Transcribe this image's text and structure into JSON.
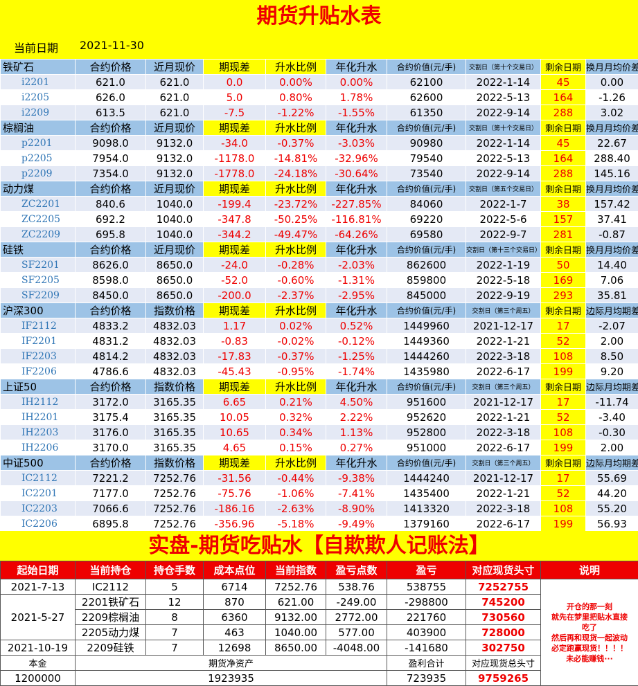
{
  "title": "期货升贴水表",
  "date_label": "当前日期",
  "date": "2021-11-30",
  "sections": [
    {
      "header": [
        "铁矿石",
        "合约价格",
        "近月现价",
        "期现差",
        "升水比例",
        "年化升水",
        "合约价值(元/手)",
        "交割日（第十个交易日）",
        "剩余日期",
        "换月月均价差"
      ],
      "rows": [
        [
          "i2201",
          "621.0",
          "621.0",
          "0.0",
          "0.00%",
          "0.00%",
          "62100",
          "2022-1-14",
          "45",
          "0.00"
        ],
        [
          "i2205",
          "626.0",
          "621.0",
          "5.0",
          "0.80%",
          "1.78%",
          "62600",
          "2022-5-13",
          "164",
          "-1.26"
        ],
        [
          "i2209",
          "613.5",
          "621.0",
          "-7.5",
          "-1.22%",
          "-1.55%",
          "61350",
          "2022-9-14",
          "288",
          "3.02"
        ]
      ]
    },
    {
      "header": [
        "棕榈油",
        "合约价格",
        "近月现价",
        "期现差",
        "升水比例",
        "年化升水",
        "合约价值(元/手)",
        "交割日（第十个交易日）",
        "剩余日期",
        "换月月均价差"
      ],
      "rows": [
        [
          "p2201",
          "9098.0",
          "9132.0",
          "-34.0",
          "-0.37%",
          "-3.03%",
          "90980",
          "2022-1-14",
          "45",
          "22.67"
        ],
        [
          "p2205",
          "7954.0",
          "9132.0",
          "-1178.0",
          "-14.81%",
          "-32.96%",
          "79540",
          "2022-5-13",
          "164",
          "288.40"
        ],
        [
          "p2209",
          "7354.0",
          "9132.0",
          "-1778.0",
          "-24.18%",
          "-30.64%",
          "73540",
          "2022-9-14",
          "288",
          "145.16"
        ]
      ]
    },
    {
      "header": [
        "动力煤",
        "合约价格",
        "近月现价",
        "期现差",
        "升水比例",
        "年化升水",
        "合约价值(元/手)",
        "交割日（第五个交易日）",
        "剩余日期",
        "换月月均价差"
      ],
      "rows": [
        [
          "ZC2201",
          "840.6",
          "1040.0",
          "-199.4",
          "-23.72%",
          "-227.85%",
          "84060",
          "2022-1-7",
          "38",
          "157.42"
        ],
        [
          "ZC2205",
          "692.2",
          "1040.0",
          "-347.8",
          "-50.25%",
          "-116.81%",
          "69220",
          "2022-5-6",
          "157",
          "37.41"
        ],
        [
          "ZC2209",
          "695.8",
          "1040.0",
          "-344.2",
          "-49.47%",
          "-64.26%",
          "69580",
          "2022-9-7",
          "281",
          "-0.87"
        ]
      ]
    },
    {
      "header": [
        "硅铁",
        "合约价格",
        "近月现价",
        "期现差",
        "升水比例",
        "年化升水",
        "合约价值(元/手)",
        "交割日（第十三个交易日）",
        "剩余日期",
        "换月月均价差"
      ],
      "rows": [
        [
          "SF2201",
          "8626.0",
          "8650.0",
          "-24.0",
          "-0.28%",
          "-2.03%",
          "862600",
          "2022-1-19",
          "50",
          "14.40"
        ],
        [
          "SF2205",
          "8598.0",
          "8650.0",
          "-52.0",
          "-0.60%",
          "-1.31%",
          "859800",
          "2022-5-18",
          "169",
          "7.06"
        ],
        [
          "SF2209",
          "8450.0",
          "8650.0",
          "-200.0",
          "-2.37%",
          "-2.95%",
          "845000",
          "2022-9-19",
          "293",
          "35.81"
        ]
      ]
    },
    {
      "header": [
        "沪深300",
        "合约价格",
        "指数价格",
        "期现差",
        "升水比例",
        "年化升水",
        "合约价值(元/手)",
        "交割日（第三个周五）",
        "剩余日期",
        "边际月均期差"
      ],
      "rows": [
        [
          "IF2112",
          "4833.2",
          "4832.03",
          "1.17",
          "0.02%",
          "0.52%",
          "1449960",
          "2021-12-17",
          "17",
          "-2.07"
        ],
        [
          "IF2201",
          "4831.2",
          "4832.03",
          "-0.83",
          "-0.02%",
          "-0.12%",
          "1449360",
          "2022-1-21",
          "52",
          "2.00"
        ],
        [
          "IF2203",
          "4814.2",
          "4832.03",
          "-17.83",
          "-0.37%",
          "-1.25%",
          "1444260",
          "2022-3-18",
          "108",
          "8.50"
        ],
        [
          "IF2206",
          "4786.6",
          "4832.03",
          "-45.43",
          "-0.95%",
          "-1.74%",
          "1435980",
          "2022-6-17",
          "199",
          "9.20"
        ]
      ]
    },
    {
      "header": [
        "上证50",
        "合约价格",
        "指数价格",
        "期现差",
        "升水比例",
        "年化升水",
        "合约价值(元/手)",
        "交割日（第三个周五）",
        "剩余日期",
        "边际月均期差"
      ],
      "rows": [
        [
          "IH2112",
          "3172.0",
          "3165.35",
          "6.65",
          "0.21%",
          "4.50%",
          "951600",
          "2021-12-17",
          "17",
          "-11.74"
        ],
        [
          "IH2201",
          "3175.4",
          "3165.35",
          "10.05",
          "0.32%",
          "2.22%",
          "952620",
          "2022-1-21",
          "52",
          "-3.40"
        ],
        [
          "IH2203",
          "3176.0",
          "3165.35",
          "10.65",
          "0.34%",
          "1.13%",
          "952800",
          "2022-3-18",
          "108",
          "-0.30"
        ],
        [
          "IH2206",
          "3170.0",
          "3165.35",
          "4.65",
          "0.15%",
          "0.27%",
          "951000",
          "2022-6-17",
          "199",
          "2.00"
        ]
      ]
    },
    {
      "header": [
        "中证500",
        "合约价格",
        "指数价格",
        "期现差",
        "升水比例",
        "年化升水",
        "合约价值(元/手)",
        "交割日（第三个周五）",
        "剩余日期",
        "边际月均期差"
      ],
      "rows": [
        [
          "IC2112",
          "7221.2",
          "7252.76",
          "-31.56",
          "-0.44%",
          "-9.38%",
          "1444240",
          "2021-12-17",
          "17",
          "55.69"
        ],
        [
          "IC2201",
          "7177.0",
          "7252.76",
          "-75.76",
          "-1.06%",
          "-7.41%",
          "1435400",
          "2022-1-21",
          "52",
          "44.20"
        ],
        [
          "IC2203",
          "7066.6",
          "7252.76",
          "-186.16",
          "-2.63%",
          "-8.90%",
          "1413320",
          "2022-3-18",
          "108",
          "55.20"
        ],
        [
          "IC2206",
          "6895.8",
          "7252.76",
          "-356.96",
          "-5.18%",
          "-9.49%",
          "1379160",
          "2022-6-17",
          "199",
          "56.93"
        ]
      ]
    }
  ],
  "ledger": {
    "title": "实盘-期货吃贴水【自欺欺人记账法】",
    "header": [
      "起始日期",
      "当前持仓",
      "持仓手数",
      "成本点位",
      "当前指数",
      "盈亏点数",
      "盈亏",
      "对应现货头寸",
      "说明"
    ],
    "groups": [
      {
        "start": "2021-7-13",
        "positions": [
          [
            "IC2112",
            "5",
            "6714",
            "7252.76",
            "538.76",
            "538755",
            "7252755"
          ]
        ]
      },
      {
        "start": "2021-5-27",
        "positions": [
          [
            "2201铁矿石",
            "12",
            "870",
            "621.00",
            "-249.00",
            "-298800",
            "745200"
          ],
          [
            "2209棕榈油",
            "8",
            "6360",
            "9132.00",
            "2772.00",
            "221760",
            "730560"
          ],
          [
            "2205动力煤",
            "7",
            "463",
            "1040.00",
            "577.00",
            "403900",
            "728000"
          ]
        ]
      },
      {
        "start": "2021-10-19",
        "positions": [
          [
            "2209硅铁",
            "7",
            "12698",
            "8650.00",
            "-4048.00",
            "-141680",
            "302750"
          ]
        ]
      }
    ],
    "note": [
      "开仓的那一刻",
      "就先在梦里把贴水直接",
      "吃了",
      "然后再和现货一起波动",
      "必定跑赢现货！！！！",
      "未必能赚钱···"
    ],
    "summary_labels": [
      "本金",
      "期货净资产",
      "盈利合计",
      "对应现货总头寸"
    ],
    "summary_values": [
      "1200000",
      "1923935",
      "723935",
      "9759265"
    ]
  }
}
